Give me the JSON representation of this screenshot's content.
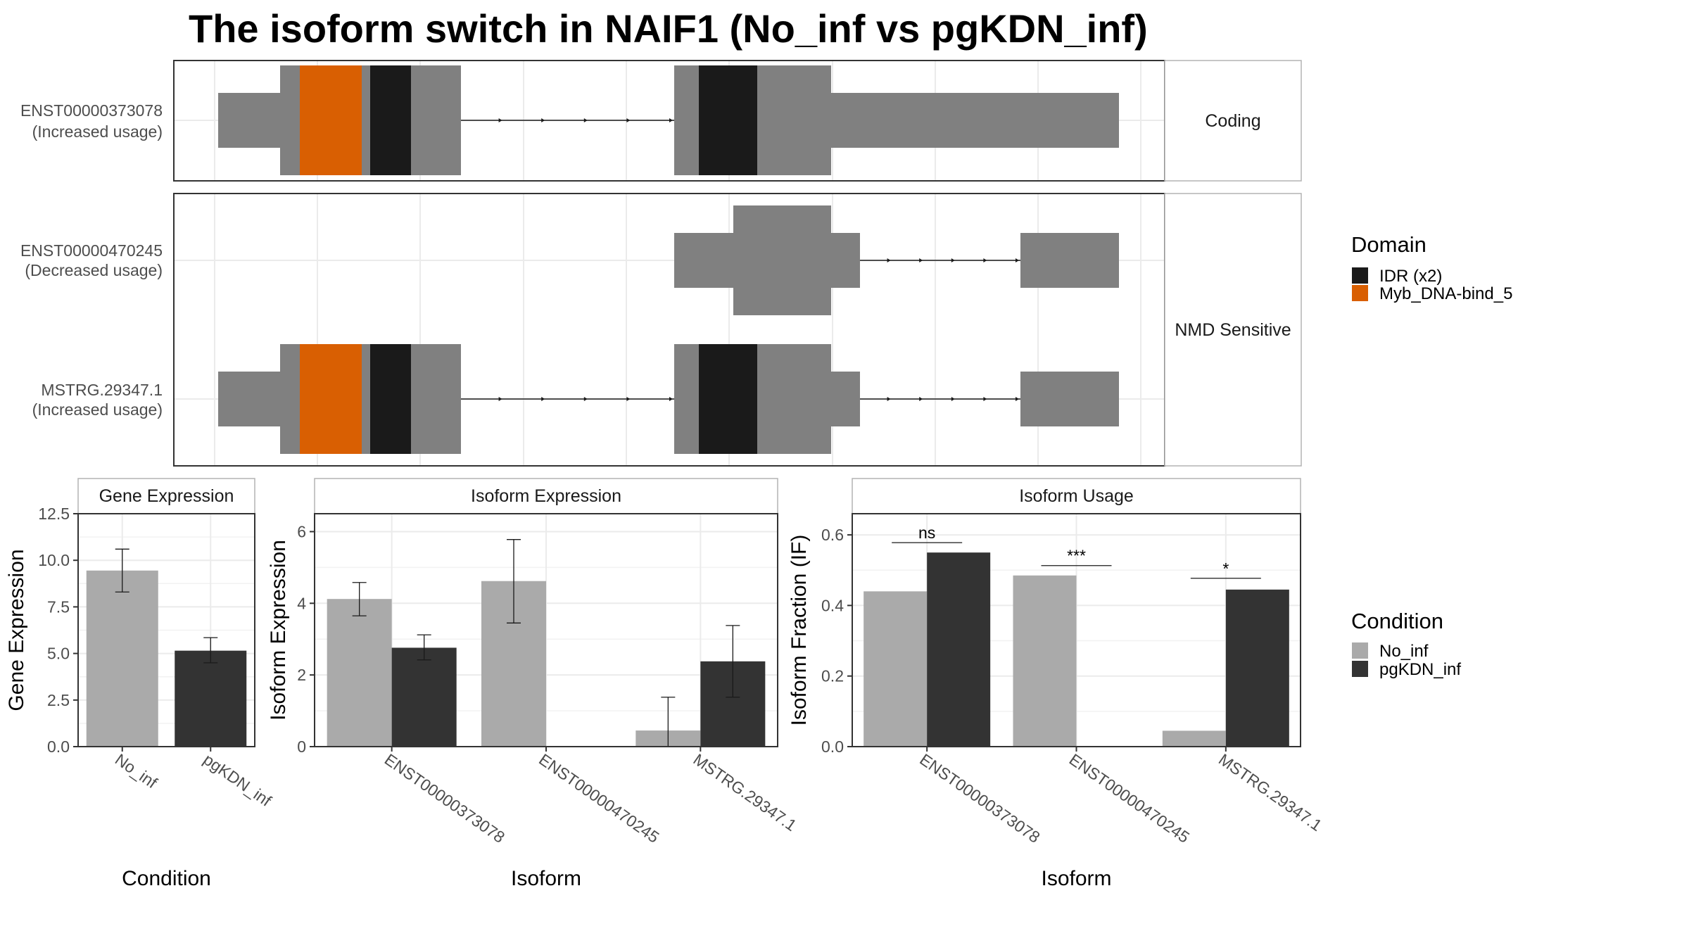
{
  "title": "The isoform switch in NAIF1 (No_inf vs pgKDN_inf)",
  "colors": {
    "exon": "#808080",
    "idr": "#1a1a1a",
    "myb": "#d95f02",
    "no_inf": "#aaaaaa",
    "pgkdn_inf": "#333333",
    "grid": "#ebebeb",
    "strip_bg": "#ffffff",
    "panel_border": "#333333"
  },
  "transcript_plot": {
    "facets": [
      {
        "label": "Coding",
        "isoforms": [
          {
            "name": "ENST00000373078",
            "usage": "(Increased usage)"
          }
        ]
      },
      {
        "label": "NMD Sensitive",
        "isoforms": [
          {
            "name": "ENST00000470245",
            "usage": "(Decreased usage)"
          },
          {
            "name": "MSTRG.29347.1",
            "usage": "(Increased usage)"
          }
        ]
      }
    ],
    "domain_legend": {
      "title": "Domain",
      "items": [
        {
          "label": "IDR (x2)",
          "color": "#1a1a1a"
        },
        {
          "label": "Myb_DNA-bind_5",
          "color": "#d95f02"
        }
      ]
    }
  },
  "condition_legend": {
    "title": "Condition",
    "items": [
      {
        "label": "No_inf",
        "color": "#aaaaaa"
      },
      {
        "label": "pgKDN_inf",
        "color": "#333333"
      }
    ]
  },
  "chart_data": [
    {
      "type": "bar",
      "strip": "Gene Expression",
      "xlabel": "Condition",
      "ylabel": "Gene Expression",
      "ylim": [
        0,
        12.5
      ],
      "yticks": [
        "0.0",
        "2.5",
        "5.0",
        "7.5",
        "10.0",
        "12.5"
      ],
      "categories": [
        "No_inf",
        "pgKDN_inf"
      ],
      "values": [
        9.45,
        5.15
      ],
      "errors": [
        [
          8.3,
          10.6
        ],
        [
          4.5,
          5.85
        ]
      ]
    },
    {
      "type": "bar",
      "strip": "Isoform Expression",
      "xlabel": "Isoform",
      "ylabel": "Isoform Expression",
      "ylim": [
        0,
        6.5
      ],
      "yticks": [
        "0",
        "2",
        "4",
        "6"
      ],
      "categories": [
        "ENST00000373078",
        "ENST00000470245",
        "MSTRG.29347.1"
      ],
      "series": [
        {
          "name": "No_inf",
          "values": [
            4.12,
            4.62,
            0.45
          ],
          "errors": [
            [
              3.65,
              4.58
            ],
            [
              3.45,
              5.78
            ],
            [
              0.0,
              1.38
            ]
          ]
        },
        {
          "name": "pgKDN_inf",
          "values": [
            2.76,
            0.0,
            2.38
          ],
          "errors": [
            [
              2.42,
              3.12
            ],
            [
              0.0,
              0.0
            ],
            [
              1.38,
              3.38
            ]
          ]
        }
      ]
    },
    {
      "type": "bar",
      "strip": "Isoform Usage",
      "xlabel": "Isoform",
      "ylabel": "Isoform Fraction (IF)",
      "ylim": [
        0,
        0.66
      ],
      "yticks": [
        "0.0",
        "0.2",
        "0.4",
        "0.6"
      ],
      "categories": [
        "ENST00000373078",
        "ENST00000470245",
        "MSTRG.29347.1"
      ],
      "series": [
        {
          "name": "No_inf",
          "values": [
            0.44,
            0.485,
            0.045
          ]
        },
        {
          "name": "pgKDN_inf",
          "values": [
            0.55,
            0.0,
            0.445
          ]
        }
      ],
      "annotations": [
        {
          "category": "ENST00000373078",
          "label": "ns",
          "y": 0.578
        },
        {
          "category": "ENST00000470245",
          "label": "***",
          "y": 0.513
        },
        {
          "category": "MSTRG.29347.1",
          "label": "*",
          "y": 0.477
        }
      ]
    }
  ]
}
